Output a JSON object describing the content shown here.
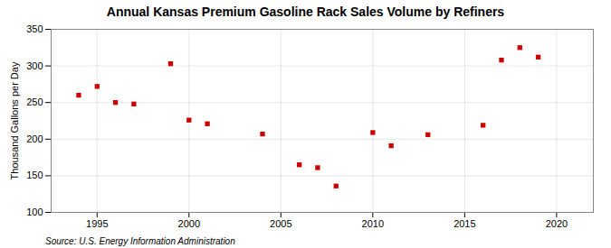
{
  "chart_data": {
    "type": "scatter",
    "title": "Annual Kansas Premium Gasoline Rack Sales Volume by Refiners",
    "ylabel": "Thousand Gallons per Day",
    "source": "Source: U.S. Energy Information Administration",
    "x": [
      1994,
      1995,
      1996,
      1997,
      1999,
      2000,
      2001,
      2004,
      2006,
      2007,
      2008,
      2010,
      2011,
      2013,
      2016,
      2017,
      2018,
      2019
    ],
    "values": [
      260,
      272,
      250,
      248,
      303,
      226,
      221,
      207,
      165,
      161,
      136,
      209,
      191,
      206,
      219,
      308,
      325,
      312
    ],
    "color": "#CC0000",
    "marker": "square",
    "xlim": [
      1992.5,
      2022
    ],
    "ylim": [
      100,
      350
    ],
    "xticks": [
      1995,
      2000,
      2005,
      2010,
      2015,
      2020
    ],
    "yticks": [
      100,
      150,
      200,
      250,
      300,
      350
    ],
    "grid": true
  }
}
